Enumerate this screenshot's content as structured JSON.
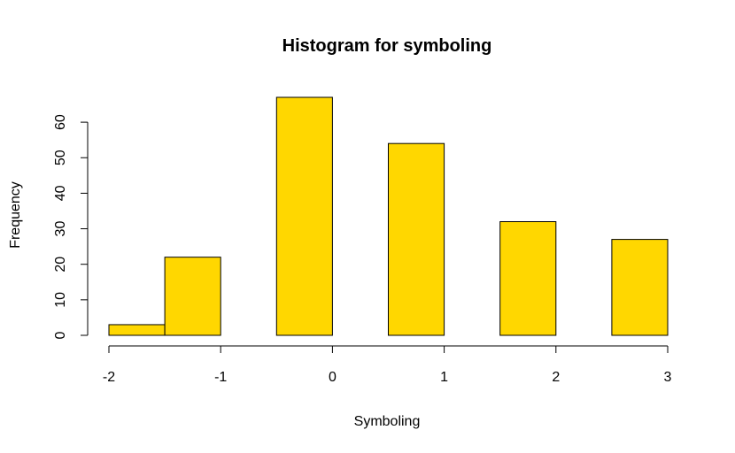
{
  "chart_data": {
    "type": "bar",
    "title": "Histogram for symboling",
    "xlabel": "Symboling",
    "ylabel": "Frequency",
    "bin_edges": [
      -2,
      -1.5,
      -1,
      -0.5,
      0,
      0.5,
      1,
      1.5,
      2,
      2.5,
      3
    ],
    "values": [
      3,
      22,
      0,
      67,
      0,
      54,
      0,
      32,
      0,
      27
    ],
    "xlim": [
      -2,
      3
    ],
    "ylim": [
      0,
      67
    ],
    "x_ticks": [
      -2,
      -1,
      0,
      1,
      2,
      3
    ],
    "x_tick_labels": [
      "-2",
      "-1",
      "0",
      "1",
      "2",
      "3"
    ],
    "y_ticks": [
      0,
      10,
      20,
      30,
      40,
      50,
      60
    ],
    "y_tick_labels": [
      "0",
      "10",
      "20",
      "30",
      "40",
      "50",
      "60"
    ],
    "bar_color": "#FFD700",
    "grid": false
  }
}
